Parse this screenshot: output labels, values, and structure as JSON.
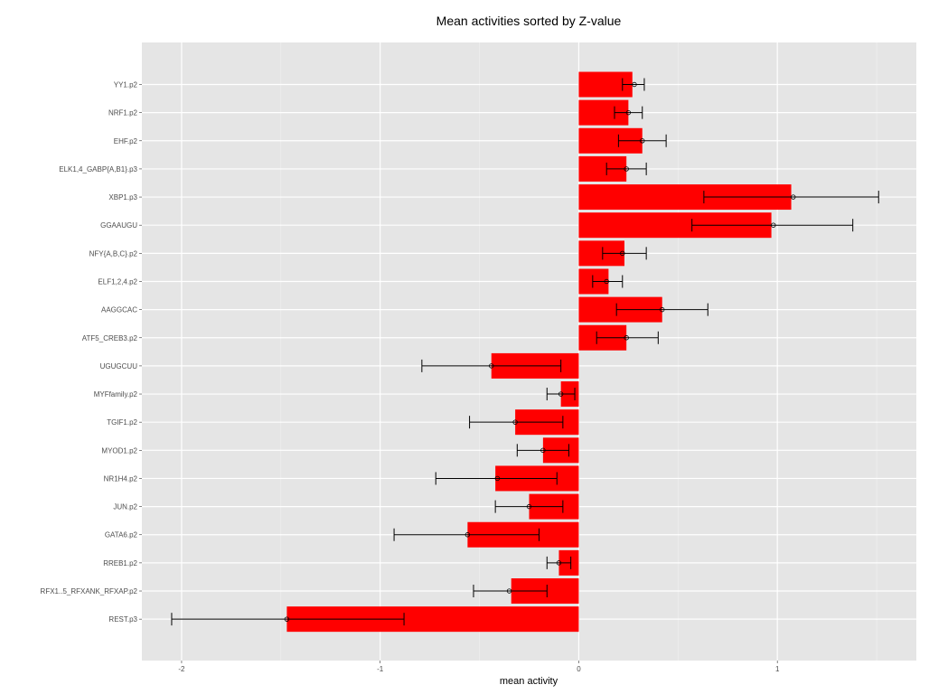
{
  "chart_data": {
    "type": "bar",
    "orientation": "horizontal",
    "title": "Mean activities sorted by Z-value",
    "xlabel": "mean activity",
    "ylabel": "",
    "xlim": [
      -2.2,
      1.7
    ],
    "x_ticks": [
      -2,
      -1,
      0,
      1
    ],
    "grid": true,
    "colors": {
      "bar": "#ff0000",
      "panel": "#e5e5e5",
      "grid_major": "#ffffff",
      "grid_minor": "#f2f2f2",
      "errorbar": "#000000",
      "tick_label": "#4d4d4d"
    },
    "categories": [
      "YY1.p2",
      "NRF1.p2",
      "EHF.p2",
      "ELK1,4_GABP{A,B1}.p3",
      "XBP1.p3",
      "GGAAUGU",
      "NFY{A,B,C}.p2",
      "ELF1,2,4.p2",
      "AAGGCAC",
      "ATF5_CREB3.p2",
      "UGUGCUU",
      "MYFfamily.p2",
      "TGIF1.p2",
      "MYOD1.p2",
      "NR1H4.p2",
      "JUN.p2",
      "GATA6.p2",
      "RREB1.p2",
      "RFX1..5_RFXANK_RFXAP.p2",
      "REST.p3"
    ],
    "values": [
      0.27,
      0.25,
      0.32,
      0.24,
      1.07,
      0.97,
      0.23,
      0.15,
      0.42,
      0.24,
      -0.44,
      -0.09,
      -0.32,
      -0.18,
      -0.42,
      -0.25,
      -0.56,
      -0.1,
      -0.34,
      -1.47
    ],
    "error_low": [
      0.22,
      0.18,
      0.2,
      0.14,
      0.63,
      0.57,
      0.12,
      0.07,
      0.19,
      0.09,
      -0.79,
      -0.16,
      -0.55,
      -0.31,
      -0.72,
      -0.42,
      -0.93,
      -0.16,
      -0.53,
      -2.05
    ],
    "error_high": [
      0.33,
      0.32,
      0.44,
      0.34,
      1.51,
      1.38,
      0.34,
      0.22,
      0.65,
      0.4,
      -0.09,
      -0.02,
      -0.08,
      -0.05,
      -0.11,
      -0.08,
      -0.2,
      -0.04,
      -0.16,
      -0.88
    ],
    "point_values": [
      0.28,
      0.25,
      0.32,
      0.24,
      1.08,
      0.98,
      0.22,
      0.14,
      0.42,
      0.24,
      -0.44,
      -0.09,
      -0.32,
      -0.18,
      -0.41,
      -0.25,
      -0.56,
      -0.1,
      -0.35,
      -1.47
    ]
  }
}
